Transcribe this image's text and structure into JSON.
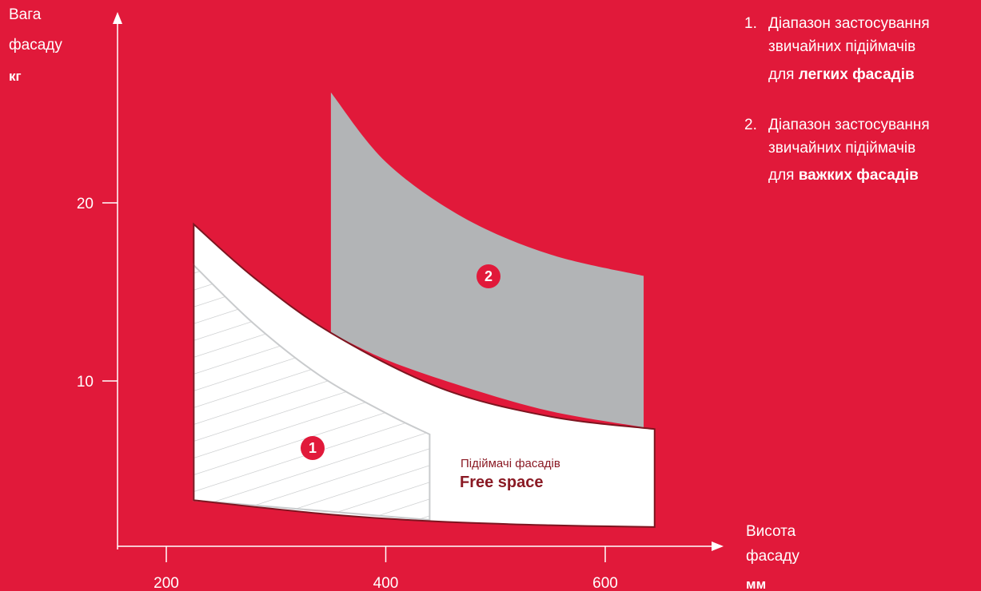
{
  "colors": {
    "background": "#e1193a",
    "heavy_region": "#b2b4b6",
    "free_space_region": "#ffffff",
    "light_region_hatch": "#c9cbcd",
    "free_space_outline": "#7d1520"
  },
  "chart_data": {
    "type": "area",
    "y_axis": {
      "label_line1": "Вага",
      "label_line2": "фасаду",
      "unit": "кг",
      "ticks": [
        10,
        20
      ]
    },
    "x_axis": {
      "label_line1": "Висота",
      "label_line2": "фасаду",
      "unit": "мм",
      "ticks": [
        200,
        400,
        600
      ]
    },
    "regions": [
      {
        "id": "1",
        "legend_number": "1.",
        "legend_line1": "Діапазон застосування",
        "legend_line2": "звичайних підіймачів",
        "legend_line3_prefix": "для",
        "legend_line3_bold": "легких фасадів",
        "x_range": [
          225,
          440
        ],
        "upper": [
          [
            225,
            16.5
          ],
          [
            280,
            13.2
          ],
          [
            340,
            10.3
          ],
          [
            400,
            8.2
          ],
          [
            440,
            7.0
          ]
        ],
        "lower": [
          [
            225,
            3.3
          ],
          [
            440,
            2.2
          ]
        ]
      },
      {
        "id": "2",
        "legend_number": "2.",
        "legend_line1": "Діапазон застосування",
        "legend_line2": "звичайних підіймачів",
        "legend_line3_prefix": "для",
        "legend_line3_bold": "важких фасадів",
        "x_range": [
          350,
          635
        ],
        "upper": [
          [
            350,
            26.2
          ],
          [
            400,
            22.3
          ],
          [
            470,
            19.2
          ],
          [
            550,
            17.1
          ],
          [
            635,
            15.9
          ]
        ],
        "lower": [
          [
            350,
            12.7
          ],
          [
            400,
            11.2
          ],
          [
            470,
            9.7
          ],
          [
            550,
            8.3
          ],
          [
            635,
            7.4
          ]
        ]
      }
    ],
    "free_space": {
      "label_sub": "Підіймачі фасадів",
      "label_main": "Free space",
      "x_range": [
        225,
        645
      ],
      "upper": [
        [
          225,
          18.8
        ],
        [
          280,
          15.8
        ],
        [
          350,
          12.7
        ],
        [
          450,
          9.6
        ],
        [
          550,
          8.0
        ],
        [
          645,
          7.3
        ]
      ],
      "lower": [
        [
          225,
          3.3
        ],
        [
          350,
          2.5
        ],
        [
          450,
          2.1
        ],
        [
          550,
          1.9
        ],
        [
          645,
          1.8
        ]
      ]
    }
  }
}
